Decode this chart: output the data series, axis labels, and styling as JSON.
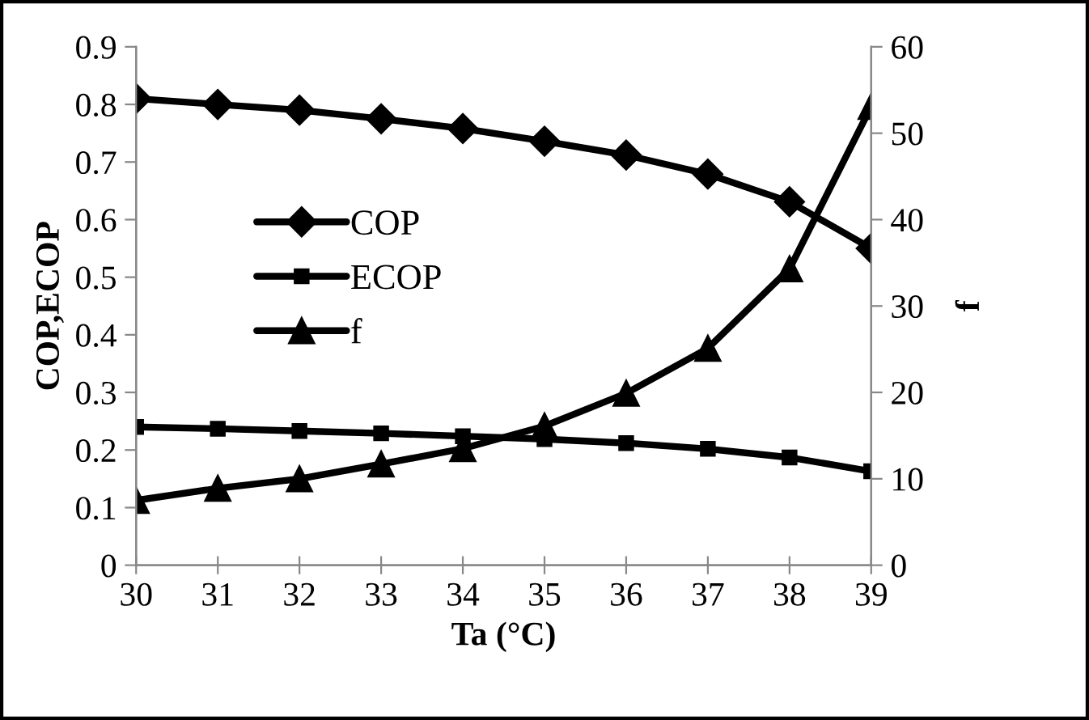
{
  "chart_data": {
    "type": "line",
    "xlabel": "Ta (°C)",
    "ylabel": "COP,ECOP",
    "y2label": "f",
    "x": [
      30,
      31,
      32,
      33,
      34,
      35,
      36,
      37,
      38,
      39
    ],
    "xlim": [
      30,
      39
    ],
    "xticks": [
      30,
      31,
      32,
      33,
      34,
      35,
      36,
      37,
      38,
      39
    ],
    "ylim": [
      0,
      0.9
    ],
    "yticks": [
      0,
      0.1,
      0.2,
      0.3,
      0.4,
      0.5,
      0.6,
      0.7,
      0.8,
      0.9
    ],
    "y2lim": [
      0,
      60
    ],
    "y2ticks": [
      0,
      10,
      20,
      30,
      40,
      50,
      60
    ],
    "grid": false,
    "legend": "left",
    "line_style": "solid",
    "series": [
      {
        "name": "COP",
        "color": "#000000",
        "marker": "diamond",
        "values": [
          0.81,
          0.8,
          0.79,
          0.775,
          0.758,
          0.736,
          0.712,
          0.679,
          0.631,
          0.55
        ]
      },
      {
        "name": "ECOP",
        "color": "#000000",
        "marker": "square",
        "values": [
          0.24,
          0.237,
          0.233,
          0.229,
          0.224,
          0.219,
          0.212,
          0.202,
          0.187,
          0.163
        ]
      },
      {
        "name": "f",
        "color": "#000000",
        "marker": "triangle",
        "axis": "y2",
        "values": [
          7.5,
          8.9,
          10.0,
          11.7,
          13.5,
          16.1,
          19.9,
          25.1,
          34.3,
          53.1
        ]
      }
    ]
  }
}
